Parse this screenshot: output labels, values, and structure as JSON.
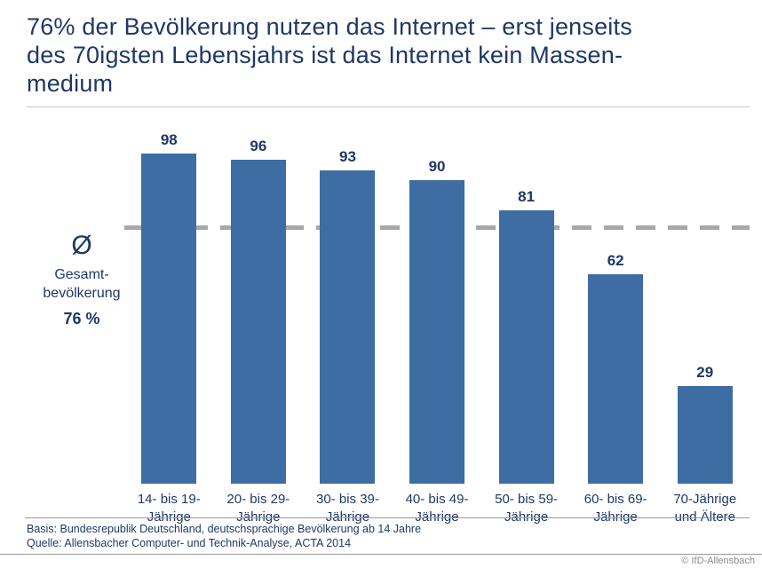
{
  "title": "76% der Bevölkerung nutzen das Internet – erst jenseits\ndes 70igsten Lebensjahrs ist das Internet kein Massen-\nmedium",
  "chart_data": {
    "type": "bar",
    "categories": [
      "14- bis 19-\nJährige",
      "20- bis 29-\nJährige",
      "30- bis 39-\nJährige",
      "40- bis 49-\nJährige",
      "50- bis 59-\nJährige",
      "60- bis 69-\nJährige",
      "70-Jährige\nund Ältere"
    ],
    "values": [
      98,
      96,
      93,
      90,
      81,
      62,
      29
    ],
    "ylim": [
      0,
      100
    ],
    "grid": "off",
    "bar_color": "#3e6da4",
    "label_color": "#1f3864",
    "average_line_color": "#a8a8a8",
    "average": {
      "symbol": "Ø",
      "label": "Gesamt-\nbevölkerung",
      "value_label": "76 %",
      "value": 76
    }
  },
  "footer": {
    "basis": "Basis: Bundesrepublik Deutschland, deutschsprachige Bevölkerung ab 14 Jahre",
    "quelle": "Quelle: Allensbacher Computer- und Technik-Analyse, ACTA 2014",
    "copyright": "© IfD-Allensbach"
  }
}
